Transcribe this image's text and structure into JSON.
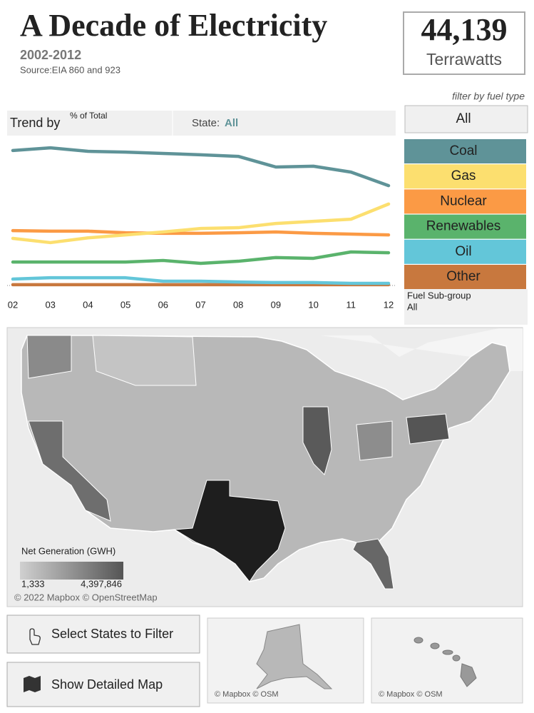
{
  "header": {
    "title": "A Decade of Electricity",
    "subtitle": "2002-2012",
    "source": "Source:EIA 860 and 923"
  },
  "kpi": {
    "value": "44,139",
    "unit": "Terrawatts"
  },
  "chart_data": {
    "type": "line",
    "trend_label": "Trend by",
    "measure": "% of Total",
    "state_label": "State:",
    "state_value": "All",
    "categories": [
      "02",
      "03",
      "04",
      "05",
      "06",
      "07",
      "08",
      "09",
      "10",
      "11",
      "12"
    ],
    "series": [
      {
        "name": "Coal",
        "color": "#5f9398",
        "values": [
          50.7,
          51.7,
          50.4,
          50.1,
          49.6,
          49.1,
          48.5,
          44.5,
          44.8,
          42.6,
          37.5
        ]
      },
      {
        "name": "Gas",
        "color": "#fcdf6f",
        "values": [
          17.7,
          16.1,
          17.9,
          19.0,
          20.1,
          21.4,
          21.7,
          23.3,
          24.1,
          24.9,
          30.6
        ]
      },
      {
        "name": "Nuclear",
        "color": "#fb9a45",
        "values": [
          20.6,
          20.4,
          20.4,
          19.8,
          19.6,
          19.6,
          19.8,
          20.1,
          19.6,
          19.3,
          19.0
        ]
      },
      {
        "name": "Renewables",
        "color": "#5ab36c",
        "values": [
          8.8,
          8.8,
          8.8,
          8.8,
          9.4,
          8.3,
          9.1,
          10.5,
          10.2,
          12.6,
          12.3
        ]
      },
      {
        "name": "Oil",
        "color": "#63c6d9",
        "values": [
          2.4,
          2.9,
          2.9,
          2.9,
          1.6,
          1.6,
          1.3,
          1.1,
          1.1,
          0.8,
          0.8
        ]
      },
      {
        "name": "Other",
        "color": "#c8783e",
        "values": [
          0.3,
          0.3,
          0.3,
          0.3,
          0.3,
          0.3,
          0.3,
          0.3,
          0.3,
          0.3,
          0.3
        ]
      }
    ]
  },
  "filter": {
    "label": "filter by fuel type",
    "selected": "All",
    "subgroup_label": "Fuel Sub-group",
    "subgroup_value": "All"
  },
  "map": {
    "legend_title": "Net Generation (GWH)",
    "legend_min": "1,333",
    "legend_max": "4,397,846",
    "attribution": "© 2022 Mapbox © OpenStreetMap"
  },
  "buttons": [
    "Select States to Filter",
    "Show Detailed Map"
  ],
  "insets": [
    "© Mapbox © OSM",
    "© Mapbox © OSM"
  ]
}
